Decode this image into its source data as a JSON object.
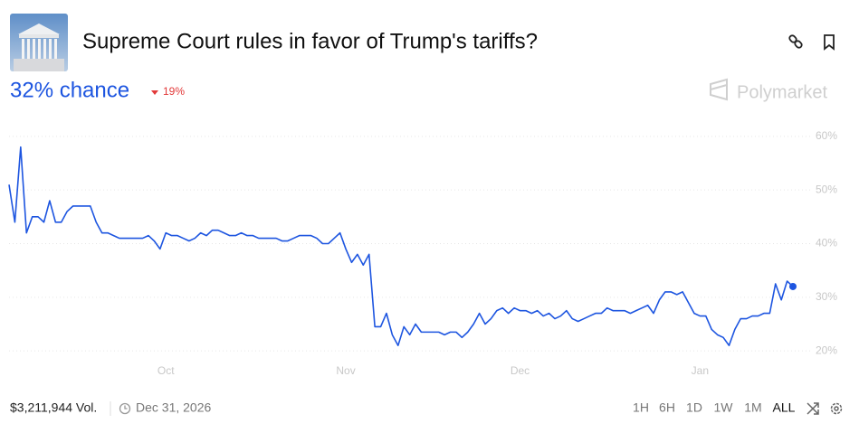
{
  "header": {
    "title": "Supreme Court rules in favor of Trump's tariffs?",
    "chance": "32% chance",
    "change": "19%",
    "brand": "Polymarket"
  },
  "chart_data": {
    "type": "line",
    "color": "#1d55e0",
    "categories": [
      null,
      null,
      null,
      null,
      null,
      null,
      null,
      null,
      null,
      null,
      null,
      null,
      null,
      null,
      null,
      null,
      null,
      null,
      null,
      null,
      null,
      null,
      null,
      null,
      null,
      null,
      null,
      "Oct",
      null,
      null,
      null,
      null,
      null,
      null,
      null,
      null,
      null,
      null,
      null,
      null,
      null,
      null,
      null,
      null,
      null,
      null,
      null,
      null,
      null,
      null,
      null,
      null,
      null,
      null,
      null,
      null,
      null,
      null,
      "Nov",
      null,
      null,
      null,
      null,
      null,
      null,
      null,
      null,
      null,
      null,
      null,
      null,
      null,
      null,
      null,
      null,
      null,
      null,
      null,
      null,
      null,
      null,
      null,
      null,
      null,
      null,
      null,
      null,
      null,
      "Dec",
      null,
      null,
      null,
      null,
      null,
      null,
      null,
      null,
      null,
      null,
      null,
      null,
      null,
      null,
      null,
      null,
      null,
      null,
      null,
      null,
      null,
      null,
      null,
      null,
      null,
      null,
      null,
      null,
      null,
      null,
      "Jan",
      null,
      null,
      null,
      null,
      null,
      null,
      null,
      null,
      null,
      null,
      null,
      null,
      null,
      null,
      null,
      null
    ],
    "values": [
      51,
      44,
      58,
      42,
      45,
      45,
      44,
      48,
      44,
      44,
      46,
      47,
      47,
      47,
      47,
      44,
      42,
      42,
      41.5,
      41,
      41,
      41,
      41,
      41,
      41.5,
      40.5,
      39,
      42,
      41.5,
      41.5,
      41,
      40.5,
      41,
      42,
      41.5,
      42.5,
      42.5,
      42,
      41.5,
      41.5,
      42,
      41.5,
      41.5,
      41,
      41,
      41,
      41,
      40.5,
      40.5,
      41,
      41.5,
      41.5,
      41.5,
      41,
      40,
      40,
      41,
      42,
      39,
      36.5,
      38,
      36,
      38,
      24.5,
      24.5,
      27,
      23,
      21,
      24.5,
      23,
      25,
      23.5,
      23.5,
      23.5,
      23.5,
      23,
      23.5,
      23.5,
      22.5,
      23.5,
      25,
      27,
      25,
      26,
      27.5,
      28,
      27,
      28,
      27.5,
      27.5,
      27,
      27.5,
      26.5,
      27,
      26,
      26.5,
      27.5,
      26,
      25.5,
      26,
      26.5,
      27,
      27,
      28,
      27.5,
      27.5,
      27.5,
      27,
      27.5,
      28,
      28.5,
      27,
      29.5,
      31,
      31,
      30.5,
      31,
      29,
      27,
      26.5,
      26.5,
      24,
      23,
      22.5,
      21,
      24,
      26,
      26,
      26.5,
      26.5,
      27,
      27,
      32.5,
      29.5,
      33,
      32
    ],
    "ylim": [
      18,
      62
    ],
    "yticks": [
      {
        "value": 20,
        "label": "20%"
      },
      {
        "value": 30,
        "label": "30%"
      },
      {
        "value": 40,
        "label": "40%"
      },
      {
        "value": 50,
        "label": "50%"
      },
      {
        "value": 60,
        "label": "60%"
      }
    ],
    "grid": true
  },
  "footer": {
    "volume": "$3,211,944 Vol.",
    "date": "Dec 31, 2026",
    "ranges": [
      "1H",
      "6H",
      "1D",
      "1W",
      "1M",
      "ALL"
    ]
  }
}
